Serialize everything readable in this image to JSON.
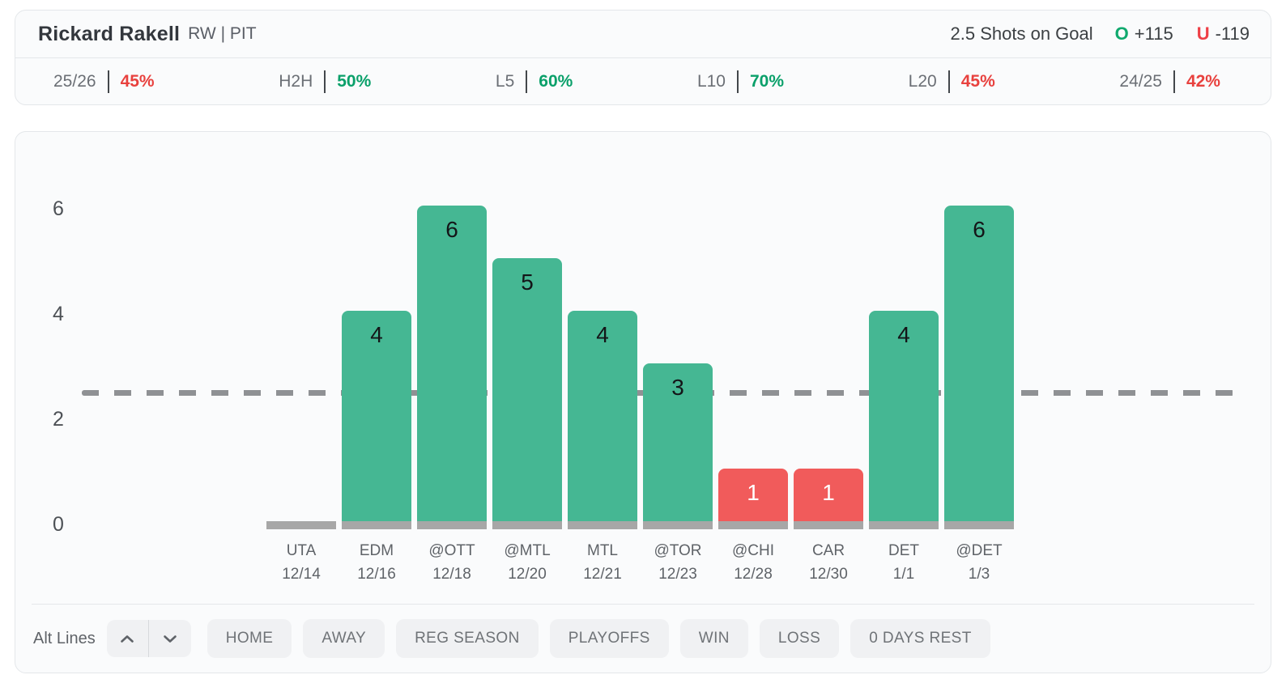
{
  "header": {
    "player_name": "Rickard Rakell",
    "player_meta": "RW | PIT",
    "prop_line": "2.5 Shots on Goal",
    "over_label": "O",
    "over_odds": "+115",
    "under_label": "U",
    "under_odds": "-119",
    "stats": [
      {
        "label": "25/26",
        "value": "45%",
        "trend": "red"
      },
      {
        "label": "H2H",
        "value": "50%",
        "trend": "green"
      },
      {
        "label": "L5",
        "value": "60%",
        "trend": "green"
      },
      {
        "label": "L10",
        "value": "70%",
        "trend": "green"
      },
      {
        "label": "L20",
        "value": "45%",
        "trend": "red"
      },
      {
        "label": "24/25",
        "value": "42%",
        "trend": "red"
      }
    ]
  },
  "chart_data": {
    "type": "bar",
    "title": "",
    "xlabel": "",
    "ylabel": "",
    "categories": [
      "UTA 12/14",
      "EDM 12/16",
      "@OTT 12/18",
      "@MTL 12/20",
      "MTL 12/21",
      "@TOR 12/23",
      "@CHI 12/28",
      "CAR 12/30",
      "DET 1/1",
      "@DET 1/3"
    ],
    "values": [
      0,
      4,
      6,
      5,
      4,
      3,
      1,
      1,
      4,
      6
    ],
    "games": [
      {
        "opponent": "UTA",
        "date": "12/14",
        "value": 0,
        "status": "none"
      },
      {
        "opponent": "EDM",
        "date": "12/16",
        "value": 4,
        "status": "over"
      },
      {
        "opponent": "@OTT",
        "date": "12/18",
        "value": 6,
        "status": "over"
      },
      {
        "opponent": "@MTL",
        "date": "12/20",
        "value": 5,
        "status": "over"
      },
      {
        "opponent": "MTL",
        "date": "12/21",
        "value": 4,
        "status": "over"
      },
      {
        "opponent": "@TOR",
        "date": "12/23",
        "value": 3,
        "status": "over"
      },
      {
        "opponent": "@CHI",
        "date": "12/28",
        "value": 1,
        "status": "under"
      },
      {
        "opponent": "CAR",
        "date": "12/30",
        "value": 1,
        "status": "under"
      },
      {
        "opponent": "DET",
        "date": "1/1",
        "value": 4,
        "status": "over"
      },
      {
        "opponent": "@DET",
        "date": "1/3",
        "value": 6,
        "status": "over"
      }
    ],
    "reference_line": {
      "value": 2.5
    },
    "yticks": [
      0,
      2,
      4,
      6
    ],
    "ylim": [
      0,
      6.6
    ],
    "legend": "none",
    "grid": "off",
    "colors": {
      "over": "#45b793",
      "under": "#f15b5b",
      "zero": "#a7a7a7",
      "base": "#a7a7a7",
      "line": "#8f9194"
    }
  },
  "toolbar": {
    "alt_lines_label": "Alt Lines",
    "stepper": [
      "up",
      "down"
    ],
    "filters": [
      "HOME",
      "AWAY",
      "REG SEASON",
      "PLAYOFFS",
      "WIN",
      "LOSS",
      "0 DAYS REST"
    ]
  }
}
